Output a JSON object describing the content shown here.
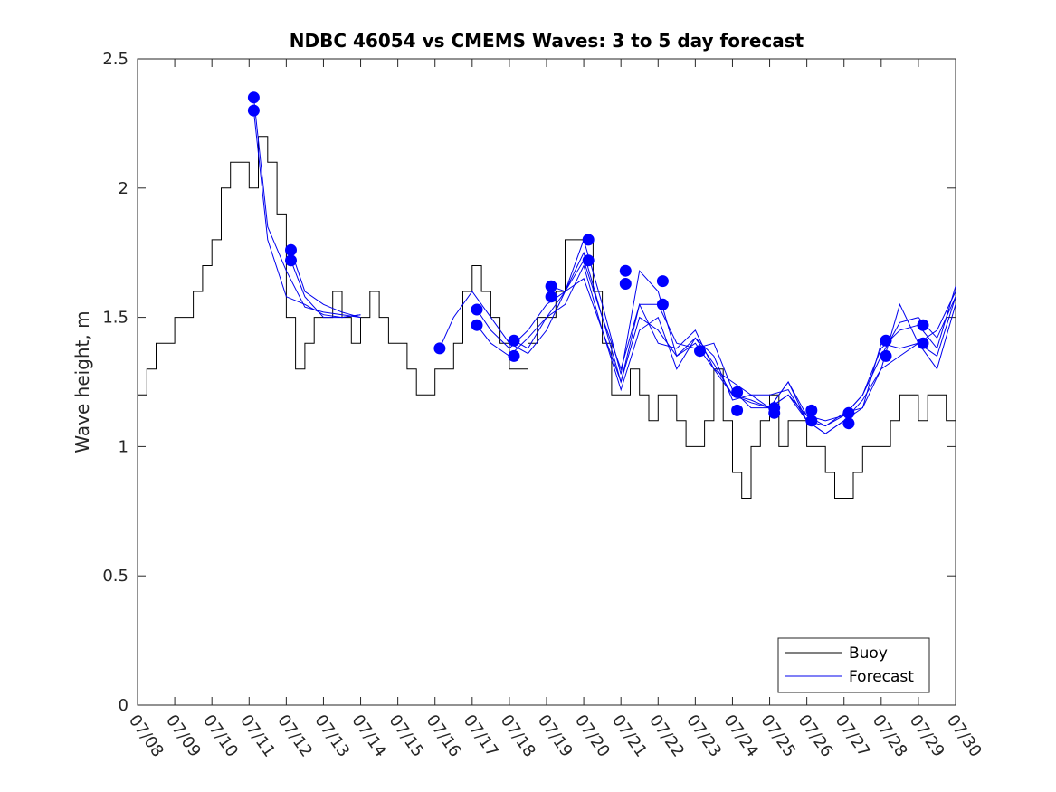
{
  "chart_data": {
    "type": "line",
    "title": "NDBC 46054 vs CMEMS Waves: 3 to 5 day forecast",
    "xlabel": "",
    "ylabel": "Wave height, m",
    "xlim": [
      "07/08",
      "07/30"
    ],
    "ylim": [
      0,
      2.5
    ],
    "yticks": [
      0,
      0.5,
      1,
      1.5,
      2,
      2.5
    ],
    "ytick_labels": [
      "0",
      "0.5",
      "1",
      "1.5",
      "2",
      "2.5"
    ],
    "xtick_labels": [
      "07/08",
      "07/09",
      "07/10",
      "07/11",
      "07/12",
      "07/13",
      "07/14",
      "07/15",
      "07/16",
      "07/17",
      "07/18",
      "07/19",
      "07/20",
      "07/21",
      "07/22",
      "07/23",
      "07/24",
      "07/25",
      "07/26",
      "07/27",
      "07/28",
      "07/29",
      "07/30"
    ],
    "grid": false,
    "legend": {
      "position": "bottom-right",
      "entries": [
        "Buoy",
        "Forecast"
      ]
    },
    "colors": {
      "buoy": "#000000",
      "forecast": "#0000ee",
      "marker": "#0000ff"
    },
    "series": [
      {
        "name": "Buoy",
        "kind": "step",
        "x": [
          "07/08 00:00",
          "07/08 06:00",
          "07/08 12:00",
          "07/08 18:00",
          "07/09 00:00",
          "07/09 06:00",
          "07/09 12:00",
          "07/09 18:00",
          "07/10 00:00",
          "07/10 06:00",
          "07/10 12:00",
          "07/10 18:00",
          "07/11 00:00",
          "07/11 06:00",
          "07/11 12:00",
          "07/11 18:00",
          "07/12 00:00",
          "07/12 06:00",
          "07/12 12:00",
          "07/12 18:00",
          "07/13 00:00",
          "07/13 06:00",
          "07/13 12:00",
          "07/13 18:00",
          "07/14 00:00",
          "07/14 06:00",
          "07/14 12:00",
          "07/14 18:00",
          "07/15 00:00",
          "07/15 06:00",
          "07/15 12:00",
          "07/15 18:00",
          "07/16 00:00",
          "07/16 06:00",
          "07/16 12:00",
          "07/16 18:00",
          "07/17 00:00",
          "07/17 06:00",
          "07/17 12:00",
          "07/17 18:00",
          "07/18 00:00",
          "07/18 06:00",
          "07/18 12:00",
          "07/18 18:00",
          "07/19 00:00",
          "07/19 06:00",
          "07/19 12:00",
          "07/19 18:00",
          "07/20 00:00",
          "07/20 06:00",
          "07/20 12:00",
          "07/20 18:00",
          "07/21 00:00",
          "07/21 06:00",
          "07/21 12:00",
          "07/21 18:00",
          "07/22 00:00",
          "07/22 06:00",
          "07/22 12:00",
          "07/22 18:00",
          "07/23 00:00",
          "07/23 06:00",
          "07/23 12:00",
          "07/23 18:00",
          "07/24 00:00",
          "07/24 06:00",
          "07/24 12:00",
          "07/24 18:00",
          "07/25 00:00",
          "07/25 06:00",
          "07/25 12:00",
          "07/25 18:00",
          "07/26 00:00",
          "07/26 06:00",
          "07/26 12:00",
          "07/26 18:00",
          "07/27 00:00",
          "07/27 06:00",
          "07/27 12:00",
          "07/27 18:00",
          "07/28 00:00",
          "07/28 06:00",
          "07/28 12:00",
          "07/28 18:00",
          "07/29 00:00",
          "07/29 06:00",
          "07/29 12:00",
          "07/29 18:00",
          "07/30 00:00"
        ],
        "values": [
          1.2,
          1.3,
          1.4,
          1.4,
          1.5,
          1.5,
          1.6,
          1.7,
          1.8,
          2.0,
          2.1,
          2.1,
          2.0,
          2.2,
          2.1,
          1.9,
          1.5,
          1.3,
          1.4,
          1.5,
          1.5,
          1.6,
          1.5,
          1.4,
          1.5,
          1.6,
          1.5,
          1.4,
          1.4,
          1.3,
          1.2,
          1.2,
          1.3,
          1.3,
          1.4,
          1.6,
          1.7,
          1.6,
          1.5,
          1.4,
          1.3,
          1.3,
          1.4,
          1.5,
          1.5,
          1.6,
          1.8,
          1.8,
          1.8,
          1.6,
          1.4,
          1.2,
          1.2,
          1.3,
          1.2,
          1.1,
          1.2,
          1.2,
          1.1,
          1.0,
          1.0,
          1.1,
          1.3,
          1.1,
          0.9,
          0.8,
          1.0,
          1.1,
          1.2,
          1.0,
          1.1,
          1.1,
          1.0,
          1.0,
          0.9,
          0.8,
          0.8,
          0.9,
          1.0,
          1.0,
          1.0,
          1.1,
          1.2,
          1.2,
          1.1,
          1.2,
          1.2,
          1.1,
          null
        ]
      },
      {
        "name": "Forecast",
        "x": [
          "07/11 03:00",
          "07/11 12:00",
          "07/12 00:00",
          "07/12 12:00",
          "07/13 00:00",
          "07/13 12:00",
          "07/14 00:00"
        ],
        "values": [
          2.3,
          1.8,
          1.58,
          1.55,
          1.51,
          1.5,
          1.51
        ]
      },
      {
        "name": "Forecast",
        "x": [
          "07/11 03:00",
          "07/11 12:00",
          "07/12 00:00",
          "07/12 12:00",
          "07/13 00:00",
          "07/13 12:00",
          "07/14 00:00"
        ],
        "values": [
          2.35,
          1.85,
          1.68,
          1.54,
          1.52,
          1.51,
          1.5
        ]
      },
      {
        "name": "Forecast",
        "x": [
          "07/12 03:00",
          "07/12 12:00",
          "07/13 00:00",
          "07/13 12:00",
          "07/14 00:00"
        ],
        "values": [
          1.76,
          1.6,
          1.55,
          1.52,
          1.5
        ]
      },
      {
        "name": "Forecast",
        "x": [
          "07/12 03:00",
          "07/12 12:00",
          "07/13 00:00",
          "07/13 12:00",
          "07/14 00:00"
        ],
        "values": [
          1.72,
          1.58,
          1.5,
          1.5,
          1.51
        ]
      },
      {
        "name": "Forecast",
        "x": [
          "07/16 03:00",
          "07/16 12:00",
          "07/17 00:00",
          "07/17 12:00",
          "07/18 00:00",
          "07/18 12:00",
          "07/19 00:00",
          "07/19 12:00",
          "07/20 00:00",
          "07/20 12:00",
          "07/21 00:00",
          "07/21 12:00",
          "07/22 00:00",
          "07/22 12:00",
          "07/23 00:00",
          "07/23 12:00",
          "07/24 00:00",
          "07/24 12:00",
          "07/25 00:00",
          "07/25 12:00",
          "07/26 00:00",
          "07/26 12:00",
          "07/27 00:00",
          "07/27 12:00",
          "07/28 00:00",
          "07/28 12:00",
          "07/29 00:00",
          "07/29 12:00",
          "07/30 00:00"
        ],
        "values": [
          1.38,
          1.5,
          1.6,
          1.5,
          1.4,
          1.36,
          1.45,
          1.6,
          1.65,
          1.45,
          1.25,
          1.55,
          1.4,
          1.38,
          1.45,
          1.3,
          1.25,
          1.2,
          1.2,
          1.22,
          1.1,
          1.05,
          1.1,
          1.15,
          1.3,
          1.35,
          1.4,
          1.45,
          1.6
        ]
      },
      {
        "name": "Forecast",
        "x": [
          "07/17 03:00",
          "07/17 12:00",
          "07/18 00:00",
          "07/18 12:00",
          "07/19 00:00",
          "07/19 12:00",
          "07/20 00:00",
          "07/20 12:00",
          "07/21 00:00",
          "07/21 12:00",
          "07/22 00:00",
          "07/22 12:00",
          "07/23 00:00",
          "07/23 12:00",
          "07/24 00:00",
          "07/24 12:00",
          "07/25 00:00",
          "07/25 12:00",
          "07/26 00:00",
          "07/26 12:00",
          "07/27 00:00",
          "07/27 12:00",
          "07/28 00:00",
          "07/28 12:00",
          "07/29 00:00",
          "07/29 12:00",
          "07/30 00:00"
        ],
        "values": [
          1.53,
          1.45,
          1.38,
          1.45,
          1.55,
          1.6,
          1.75,
          1.5,
          1.25,
          1.5,
          1.45,
          1.35,
          1.4,
          1.3,
          1.2,
          1.18,
          1.15,
          1.25,
          1.12,
          1.08,
          1.12,
          1.2,
          1.35,
          1.48,
          1.5,
          1.42,
          1.58
        ]
      },
      {
        "name": "Forecast",
        "x": [
          "07/17 03:00",
          "07/17 12:00",
          "07/18 00:00",
          "07/18 12:00",
          "07/19 00:00",
          "07/19 12:00",
          "07/20 00:00",
          "07/20 12:00",
          "07/21 00:00",
          "07/21 12:00",
          "07/22 00:00",
          "07/22 12:00",
          "07/23 00:00",
          "07/23 12:00",
          "07/24 00:00",
          "07/24 12:00",
          "07/25 00:00",
          "07/25 12:00",
          "07/26 00:00",
          "07/26 12:00",
          "07/27 00:00",
          "07/27 12:00",
          "07/28 00:00",
          "07/28 12:00",
          "07/29 00:00",
          "07/29 12:00",
          "07/30 00:00"
        ],
        "values": [
          1.47,
          1.4,
          1.35,
          1.42,
          1.5,
          1.55,
          1.7,
          1.45,
          1.22,
          1.45,
          1.5,
          1.3,
          1.42,
          1.35,
          1.18,
          1.2,
          1.15,
          1.2,
          1.1,
          1.05,
          1.1,
          1.18,
          1.3,
          1.55,
          1.4,
          1.3,
          1.55
        ]
      },
      {
        "name": "Forecast",
        "x": [
          "07/18 03:00",
          "07/18 12:00",
          "07/19 00:00",
          "07/19 12:00",
          "07/20 00:00",
          "07/20 12:00",
          "07/21 00:00",
          "07/21 12:00",
          "07/22 00:00",
          "07/22 12:00",
          "07/23 00:00",
          "07/23 12:00",
          "07/24 00:00",
          "07/24 12:00",
          "07/25 00:00",
          "07/25 12:00",
          "07/26 00:00",
          "07/26 12:00",
          "07/27 00:00",
          "07/27 12:00",
          "07/28 00:00",
          "07/28 12:00",
          "07/29 00:00",
          "07/29 12:00",
          "07/30 00:00"
        ],
        "values": [
          1.41,
          1.38,
          1.5,
          1.6,
          1.72,
          1.5,
          1.3,
          1.55,
          1.55,
          1.4,
          1.38,
          1.4,
          1.22,
          1.15,
          1.15,
          1.2,
          1.12,
          1.1,
          1.12,
          1.2,
          1.38,
          1.45,
          1.47,
          1.38,
          1.62
        ]
      },
      {
        "name": "Forecast",
        "x": [
          "07/19 03:00",
          "07/19 12:00",
          "07/20 00:00",
          "07/20 12:00",
          "07/21 00:00",
          "07/21 12:00",
          "07/22 00:00",
          "07/22 12:00",
          "07/23 00:00",
          "07/23 12:00",
          "07/24 00:00",
          "07/24 12:00",
          "07/25 00:00",
          "07/25 12:00",
          "07/26 00:00",
          "07/26 12:00",
          "07/27 00:00",
          "07/27 12:00",
          "07/28 00:00",
          "07/28 12:00",
          "07/29 00:00",
          "07/29 12:00",
          "07/30 00:00"
        ],
        "values": [
          1.62,
          1.6,
          1.8,
          1.55,
          1.28,
          1.68,
          1.6,
          1.35,
          1.42,
          1.32,
          1.2,
          1.17,
          1.15,
          1.25,
          1.1,
          1.08,
          1.13,
          1.15,
          1.4,
          1.38,
          1.4,
          1.35,
          1.58
        ]
      }
    ],
    "markers": [
      {
        "x": "07/11 03:00",
        "y": 2.35
      },
      {
        "x": "07/11 03:00",
        "y": 2.3
      },
      {
        "x": "07/12 03:00",
        "y": 1.76
      },
      {
        "x": "07/12 03:00",
        "y": 1.72
      },
      {
        "x": "07/16 03:00",
        "y": 1.38
      },
      {
        "x": "07/17 03:00",
        "y": 1.53
      },
      {
        "x": "07/17 03:00",
        "y": 1.47
      },
      {
        "x": "07/18 03:00",
        "y": 1.41
      },
      {
        "x": "07/18 03:00",
        "y": 1.35
      },
      {
        "x": "07/19 03:00",
        "y": 1.62
      },
      {
        "x": "07/19 03:00",
        "y": 1.58
      },
      {
        "x": "07/20 03:00",
        "y": 1.8
      },
      {
        "x": "07/20 03:00",
        "y": 1.72
      },
      {
        "x": "07/21 03:00",
        "y": 1.68
      },
      {
        "x": "07/21 03:00",
        "y": 1.63
      },
      {
        "x": "07/22 03:00",
        "y": 1.64
      },
      {
        "x": "07/22 03:00",
        "y": 1.55
      },
      {
        "x": "07/23 03:00",
        "y": 1.37
      },
      {
        "x": "07/24 03:00",
        "y": 1.21
      },
      {
        "x": "07/24 03:00",
        "y": 1.14
      },
      {
        "x": "07/25 03:00",
        "y": 1.15
      },
      {
        "x": "07/25 03:00",
        "y": 1.13
      },
      {
        "x": "07/26 03:00",
        "y": 1.14
      },
      {
        "x": "07/26 03:00",
        "y": 1.1
      },
      {
        "x": "07/27 03:00",
        "y": 1.13
      },
      {
        "x": "07/27 03:00",
        "y": 1.09
      },
      {
        "x": "07/28 03:00",
        "y": 1.41
      },
      {
        "x": "07/28 03:00",
        "y": 1.35
      },
      {
        "x": "07/29 03:00",
        "y": 1.47
      },
      {
        "x": "07/29 03:00",
        "y": 1.4
      }
    ]
  }
}
